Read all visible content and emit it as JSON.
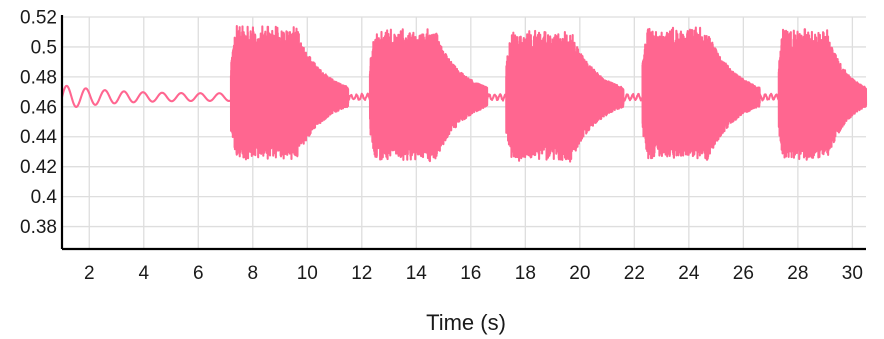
{
  "chart_data": {
    "type": "line",
    "title": "",
    "xlabel": "Time (s)",
    "ylabel": "",
    "xlim": [
      1.0,
      30.5
    ],
    "ylim": [
      0.365,
      0.52
    ],
    "x_ticks": [
      2,
      4,
      6,
      8,
      10,
      12,
      14,
      16,
      18,
      20,
      22,
      24,
      26,
      28,
      30
    ],
    "y_ticks": [
      0.38,
      0.4,
      0.42,
      0.44,
      0.46,
      0.48,
      0.5,
      0.52
    ],
    "grid": true,
    "legend": "none",
    "series_color": "#ff6690",
    "series": [
      {
        "baseline": 0.4665,
        "initial_oscillation": {
          "start": 1.0,
          "end": 7.2,
          "amplitude_start": 0.008,
          "amplitude_end": 0.002,
          "period": 0.7
        },
        "bursts": [
          {
            "start": 7.2,
            "end": 11.5,
            "min": 0.424,
            "max": 0.514
          },
          {
            "start": 12.3,
            "end": 16.6,
            "min": 0.423,
            "max": 0.512
          },
          {
            "start": 17.3,
            "end": 21.6,
            "min": 0.423,
            "max": 0.511
          },
          {
            "start": 22.3,
            "end": 26.6,
            "min": 0.424,
            "max": 0.513
          },
          {
            "start": 27.3,
            "end": 30.5,
            "min": 0.424,
            "max": 0.512
          }
        ]
      }
    ]
  }
}
